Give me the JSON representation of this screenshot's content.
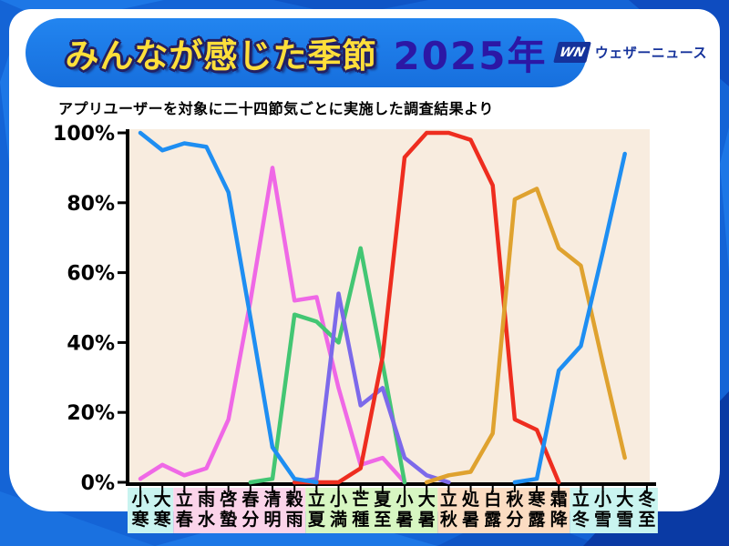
{
  "header": {
    "title": "みんなが感じた季節",
    "year": "2025年",
    "logo_mark": "WN",
    "logo_text": "ウェザーニュース",
    "banner_color": "#1b7ce9",
    "title_color": "#ffdf3a",
    "year_color": "#2c17a5"
  },
  "subtitle": "アプリユーザーを対象に二十四節気ごとに実施した調査結果より",
  "colors": {
    "page_bg": "#1464d6",
    "panel_bg": "#ffffff",
    "plot_bg": "#f8ecdf",
    "axis": "#000000"
  },
  "chart_data": {
    "type": "line",
    "title": "みんなが感じた季節 2025年",
    "xlabel": "",
    "ylabel": "",
    "ylim": [
      0,
      100
    ],
    "grid": false,
    "legend_position": "none",
    "y_tick_labels": [
      "0%",
      "20%",
      "40%",
      "60%",
      "80%",
      "100%"
    ],
    "y_tick_values": [
      0,
      20,
      40,
      60,
      80,
      100
    ],
    "categories": [
      "小寒",
      "大寒",
      "立春",
      "雨水",
      "啓蟄",
      "春分",
      "清明",
      "穀雨",
      "立夏",
      "小満",
      "芒種",
      "夏至",
      "小暑",
      "大暑",
      "立秋",
      "処暑",
      "白露",
      "秋分",
      "寒露",
      "霜降",
      "立冬",
      "小雪",
      "大雪",
      "冬至"
    ],
    "season_bands": [
      {
        "from": "小寒",
        "to": "大寒",
        "color": "#c9f4f0"
      },
      {
        "from": "立春",
        "to": "穀雨",
        "color": "#fbd4ea"
      },
      {
        "from": "立夏",
        "to": "大暑",
        "color": "#d7f6c2"
      },
      {
        "from": "立秋",
        "to": "霜降",
        "color": "#fbdcc2"
      },
      {
        "from": "立冬",
        "to": "冬至",
        "color": "#c9f4f0"
      }
    ],
    "series": [
      {
        "name": "magenta",
        "color": "#ef68e6",
        "values": [
          1,
          5,
          2,
          4,
          18,
          52,
          90,
          52,
          53,
          27,
          5,
          7,
          0,
          null,
          null,
          null,
          null,
          null,
          null,
          null,
          null,
          null,
          null,
          null
        ]
      },
      {
        "name": "green",
        "color": "#43c673",
        "values": [
          null,
          null,
          null,
          null,
          null,
          0,
          1,
          48,
          46,
          40,
          67,
          34,
          0,
          null,
          null,
          null,
          null,
          null,
          null,
          null,
          null,
          null,
          null,
          null
        ]
      },
      {
        "name": "purple",
        "color": "#7c69ea",
        "values": [
          null,
          null,
          null,
          null,
          null,
          null,
          null,
          0,
          1,
          54,
          22,
          27,
          7,
          2,
          0,
          null,
          null,
          null,
          null,
          null,
          null,
          null,
          null,
          null
        ]
      },
      {
        "name": "red",
        "color": "#ee2d1f",
        "values": [
          null,
          null,
          null,
          null,
          null,
          null,
          null,
          0,
          0,
          0,
          4,
          36,
          93,
          100,
          100,
          98,
          85,
          18,
          15,
          0,
          null,
          null,
          null,
          null
        ]
      },
      {
        "name": "orange",
        "color": "#dfa22f",
        "values": [
          null,
          null,
          null,
          null,
          null,
          null,
          null,
          null,
          null,
          null,
          null,
          null,
          null,
          0,
          2,
          3,
          14,
          81,
          84,
          67,
          62,
          34,
          7,
          null
        ]
      },
      {
        "name": "blue",
        "color": "#1e8ef2",
        "values": [
          100,
          95,
          97,
          96,
          83,
          47,
          10,
          1,
          0,
          null,
          null,
          null,
          null,
          null,
          null,
          null,
          null,
          0,
          1,
          32,
          39,
          66,
          94,
          null
        ]
      }
    ]
  }
}
